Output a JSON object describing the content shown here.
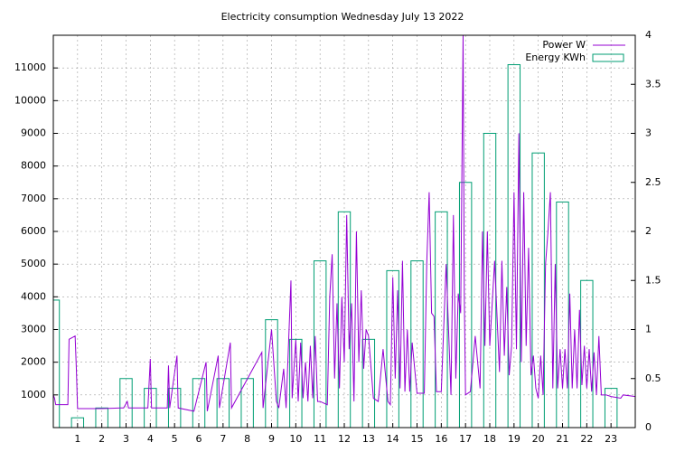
{
  "chart_data": {
    "type": "line",
    "title": "Electricity consumption Wednesday July 13 2022",
    "xlim": [
      0,
      24
    ],
    "xticks": [
      1,
      2,
      3,
      4,
      5,
      6,
      7,
      8,
      9,
      10,
      11,
      12,
      13,
      14,
      15,
      16,
      17,
      18,
      19,
      20,
      21,
      22,
      23
    ],
    "ylim": [
      0,
      12000
    ],
    "yticks": [
      1000,
      2000,
      3000,
      4000,
      5000,
      6000,
      7000,
      8000,
      9000,
      10000,
      11000
    ],
    "y2lim": [
      0,
      4
    ],
    "y2ticks": [
      0,
      0.5,
      1,
      1.5,
      2,
      2.5,
      3,
      3.5,
      4
    ],
    "grid": true,
    "legend": "top right",
    "series": [
      {
        "name": "Power W",
        "color": "#9400d3",
        "type": "line",
        "x": [
          0,
          0.05,
          0.1,
          0.6,
          0.65,
          0.9,
          0.95,
          1.0,
          2.0,
          2.8,
          2.9,
          3.05,
          3.1,
          3.9,
          4.0,
          4.05,
          4.7,
          4.75,
          4.8,
          5.1,
          5.15,
          5.8,
          6.3,
          6.35,
          6.8,
          6.85,
          7.3,
          7.35,
          8.6,
          8.65,
          9.0,
          9.2,
          9.3,
          9.5,
          9.6,
          9.8,
          9.85,
          10.0,
          10.1,
          10.2,
          10.3,
          10.4,
          10.5,
          10.6,
          10.7,
          10.8,
          10.9,
          11.0,
          11.3,
          11.4,
          11.5,
          11.6,
          11.7,
          11.8,
          11.9,
          12.0,
          12.1,
          12.2,
          12.3,
          12.4,
          12.5,
          12.6,
          12.7,
          12.8,
          12.9,
          13.0,
          13.2,
          13.4,
          13.6,
          13.8,
          13.9,
          14.0,
          14.1,
          14.2,
          14.3,
          14.4,
          14.5,
          14.6,
          14.7,
          14.8,
          15.0,
          15.3,
          15.4,
          15.5,
          15.6,
          15.7,
          15.8,
          16.0,
          16.2,
          16.4,
          16.5,
          16.6,
          16.7,
          16.8,
          16.9,
          16.95,
          17.0,
          17.2,
          17.4,
          17.6,
          17.7,
          17.8,
          17.9,
          18.0,
          18.2,
          18.4,
          18.5,
          18.6,
          18.7,
          18.8,
          18.9,
          19.0,
          19.1,
          19.2,
          19.3,
          19.4,
          19.5,
          19.6,
          19.7,
          19.8,
          19.9,
          20.0,
          20.1,
          20.2,
          20.3,
          20.4,
          20.5,
          20.6,
          20.7,
          20.8,
          20.9,
          21.0,
          21.1,
          21.2,
          21.3,
          21.4,
          21.5,
          21.6,
          21.7,
          21.8,
          21.9,
          22.0,
          22.1,
          22.2,
          22.3,
          22.4,
          22.5,
          22.6,
          22.8,
          23.0,
          23.4,
          23.5,
          24.0
        ],
        "values": [
          1000,
          900,
          700,
          700,
          2700,
          2800,
          1800,
          580,
          580,
          600,
          600,
          800,
          600,
          600,
          2100,
          600,
          600,
          1900,
          600,
          2200,
          600,
          500,
          2000,
          500,
          2200,
          600,
          2600,
          600,
          2300,
          600,
          3000,
          800,
          600,
          1800,
          600,
          4500,
          900,
          2700,
          800,
          2600,
          900,
          2000,
          800,
          2500,
          900,
          2800,
          800,
          800,
          700,
          4000,
          5300,
          1500,
          3800,
          1200,
          4000,
          2000,
          6500,
          2400,
          3800,
          800,
          6000,
          2000,
          4200,
          1800,
          3000,
          2800,
          900,
          800,
          2400,
          800,
          700,
          4600,
          1500,
          4200,
          1200,
          5100,
          1100,
          3000,
          1100,
          2600,
          1050,
          1050,
          5000,
          7200,
          3500,
          3400,
          1100,
          1100,
          5000,
          1000,
          6500,
          1500,
          4100,
          3500,
          12000,
          4000,
          1000,
          1100,
          2800,
          1200,
          6000,
          2500,
          6000,
          2500,
          5100,
          1700,
          5100,
          2200,
          4300,
          1600,
          2500,
          7200,
          2400,
          9000,
          2000,
          7200,
          2500,
          5500,
          1600,
          2200,
          1200,
          900,
          2200,
          1000,
          5000,
          6000,
          7200,
          1200,
          5000,
          1200,
          2400,
          1200,
          2400,
          1200,
          4100,
          1200,
          3000,
          1200,
          3600,
          1300,
          2500,
          1200,
          2400,
          1100,
          2300,
          1000,
          2800,
          1000,
          1000,
          950,
          900,
          1000,
          950
        ]
      },
      {
        "name": "Energy KWh",
        "color": "#009e73",
        "type": "bar",
        "axis": "y2",
        "x": [
          0,
          1,
          2,
          3,
          4,
          5,
          6,
          7,
          8,
          9,
          10,
          11,
          12,
          13,
          14,
          15,
          16,
          17,
          18,
          19,
          20,
          21,
          22,
          23
        ],
        "values": [
          1.3,
          0.1,
          0.2,
          0.5,
          0.4,
          0.4,
          0.5,
          0.5,
          0.5,
          1.1,
          0.9,
          1.7,
          2.2,
          0.9,
          1.6,
          1.7,
          2.2,
          2.5,
          3.0,
          3.7,
          2.8,
          2.3,
          1.5,
          0.4
        ]
      }
    ]
  }
}
